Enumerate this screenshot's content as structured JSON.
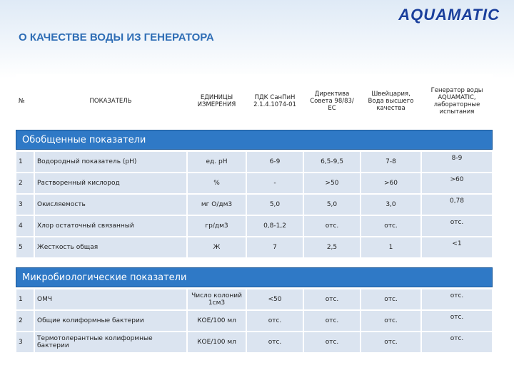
{
  "header": {
    "logo": "AQUAMATIC",
    "title": "О КАЧЕСТВЕ ВОДЫ ИЗ ГЕНЕРАТОРА"
  },
  "table": {
    "columns": [
      "№",
      "ПОКАЗАТЕЛЬ",
      "ЕДИНИЦЫ ИЗМЕРЕНИЯ",
      "ПДК СанПиН 2.1.4.1074-01",
      "Директива Совета 98/83/ЕС",
      "Швейцария, Вода высшего качества",
      "Генератор воды AQUAMATIC, лабораторные испытания"
    ],
    "sections": [
      {
        "title": "Обобщенные показатели",
        "rows": [
          [
            "1",
            "Водородный показатель (pH)",
            "ед. pH",
            "6-9",
            "6,5-9,5",
            "7-8",
            "8-9"
          ],
          [
            "2",
            "Растворенный кислород",
            "%",
            "-",
            ">50",
            ">60",
            ">60"
          ],
          [
            "3",
            "Окисляемость",
            "мг О/дм3",
            "5,0",
            "5,0",
            "3,0",
            "0,78"
          ],
          [
            "4",
            "Хлор остаточный связанный",
            "гр/дм3",
            "0,8-1,2",
            "отс.",
            "отс.",
            "отс."
          ],
          [
            "5",
            "Жесткость общая",
            "Ж",
            "7",
            "2,5",
            "1",
            "<1"
          ]
        ]
      },
      {
        "title": "Микробиологические показатели",
        "rows": [
          [
            "1",
            "ОМЧ",
            "Число колоний 1см3",
            "<50",
            "отс.",
            "отс.",
            "отс."
          ],
          [
            "2",
            "Общие колиформные бактерии",
            "КОЕ/100 мл",
            "отс.",
            "отс.",
            "отс.",
            "отс."
          ],
          [
            "3",
            "Термотолерантные колиформные бактерии",
            "КОЕ/100 мл",
            "отс.",
            "отс.",
            "отс.",
            "отс."
          ]
        ]
      }
    ]
  }
}
